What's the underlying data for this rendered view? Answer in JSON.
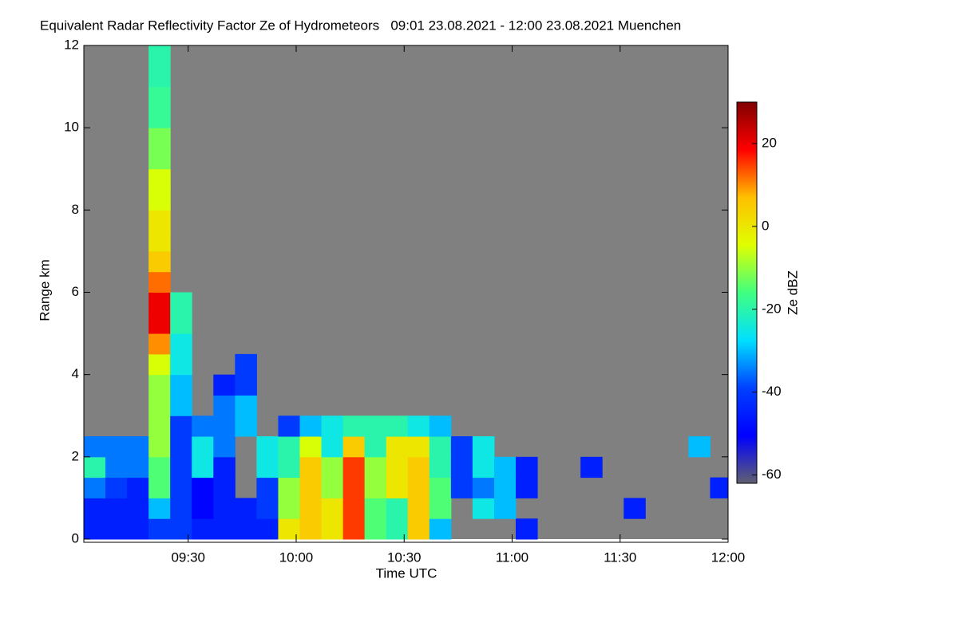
{
  "chart_data": {
    "type": "heatmap",
    "title": "Equivalent Radar Reflectivity Factor Ze of Hydrometeors   09:01 23.08.2021 - 12:00 23.08.2021 Muenchen",
    "xlabel": "Time UTC",
    "ylabel": "Range km",
    "colorbar_label": "Ze dBZ",
    "x": [
      541,
      547,
      553,
      559,
      565,
      571,
      577,
      583,
      589,
      595,
      601,
      607,
      613,
      619,
      625,
      631,
      637,
      643,
      649,
      655,
      661,
      667,
      673,
      679,
      685,
      691,
      697,
      703,
      709,
      715
    ],
    "y": [
      0,
      0.5,
      1,
      1.5,
      2,
      2.5,
      3,
      3.5,
      4,
      4.5,
      5,
      5.5,
      6,
      6.5,
      7,
      7.5,
      8,
      8.5,
      9,
      9.5,
      10,
      10.5,
      11,
      11.5
    ],
    "values": [
      [
        -45,
        -45,
        -45,
        -40,
        -40,
        -45,
        -45,
        -45,
        -45,
        0,
        5,
        0,
        15,
        -15,
        -20,
        5,
        -30,
        null,
        null,
        null,
        -45,
        null,
        null,
        null,
        null,
        null,
        null,
        null,
        null,
        null
      ],
      [
        -45,
        -45,
        -45,
        -30,
        -40,
        -50,
        -45,
        -45,
        -40,
        -10,
        5,
        0,
        15,
        -15,
        -20,
        5,
        -15,
        null,
        -25,
        -30,
        null,
        null,
        null,
        null,
        null,
        -45,
        null,
        null,
        null,
        null
      ],
      [
        -35,
        -40,
        -45,
        -15,
        -40,
        -50,
        -45,
        null,
        -40,
        -10,
        5,
        -10,
        15,
        -10,
        0,
        5,
        -15,
        -40,
        -35,
        -30,
        -45,
        null,
        null,
        null,
        null,
        null,
        null,
        null,
        null,
        -45
      ],
      [
        -20,
        -35,
        -35,
        -15,
        -40,
        -25,
        -45,
        null,
        -25,
        -20,
        5,
        -10,
        15,
        -10,
        0,
        5,
        -20,
        -40,
        -25,
        -30,
        -45,
        null,
        null,
        -45,
        null,
        null,
        null,
        null,
        null,
        null
      ],
      [
        -35,
        -35,
        -35,
        -10,
        -40,
        -25,
        -35,
        null,
        -25,
        -20,
        -5,
        -25,
        5,
        -20,
        0,
        0,
        -20,
        -40,
        -25,
        null,
        null,
        null,
        null,
        null,
        null,
        null,
        null,
        null,
        -30,
        null
      ],
      [
        null,
        null,
        null,
        -10,
        -40,
        -35,
        -35,
        -30,
        null,
        -40,
        -30,
        -25,
        -20,
        -20,
        -20,
        -25,
        -30,
        null,
        null,
        null,
        null,
        null,
        null,
        null,
        null,
        null,
        null,
        null,
        null,
        null
      ],
      [
        null,
        null,
        null,
        -10,
        -30,
        null,
        -35,
        -30,
        null,
        null,
        null,
        null,
        null,
        null,
        null,
        null,
        null,
        null,
        null,
        null,
        null,
        null,
        null,
        null,
        null,
        null,
        null,
        null,
        null,
        null
      ],
      [
        null,
        null,
        null,
        -10,
        -30,
        null,
        -45,
        -40,
        null,
        null,
        null,
        null,
        null,
        null,
        null,
        null,
        null,
        null,
        null,
        null,
        null,
        null,
        null,
        null,
        null,
        null,
        null,
        null,
        null,
        null
      ],
      [
        null,
        null,
        null,
        -5,
        -25,
        null,
        null,
        -40,
        null,
        null,
        null,
        null,
        null,
        null,
        null,
        null,
        null,
        null,
        null,
        null,
        null,
        null,
        null,
        null,
        null,
        null,
        null,
        null,
        null,
        null
      ],
      [
        null,
        null,
        null,
        10,
        -25,
        null,
        null,
        null,
        null,
        null,
        null,
        null,
        null,
        null,
        null,
        null,
        null,
        null,
        null,
        null,
        null,
        null,
        null,
        null,
        null,
        null,
        null,
        null,
        null,
        null
      ],
      [
        null,
        null,
        null,
        20,
        -20,
        null,
        null,
        null,
        null,
        null,
        null,
        null,
        null,
        null,
        null,
        null,
        null,
        null,
        null,
        null,
        null,
        null,
        null,
        null,
        null,
        null,
        null,
        null,
        null,
        null
      ],
      [
        null,
        null,
        null,
        20,
        -20,
        null,
        null,
        null,
        null,
        null,
        null,
        null,
        null,
        null,
        null,
        null,
        null,
        null,
        null,
        null,
        null,
        null,
        null,
        null,
        null,
        null,
        null,
        null,
        null,
        null
      ],
      [
        null,
        null,
        null,
        12,
        null,
        null,
        null,
        null,
        null,
        null,
        null,
        null,
        null,
        null,
        null,
        null,
        null,
        null,
        null,
        null,
        null,
        null,
        null,
        null,
        null,
        null,
        null,
        null,
        null,
        null
      ],
      [
        null,
        null,
        null,
        5,
        null,
        null,
        null,
        null,
        null,
        null,
        null,
        null,
        null,
        null,
        null,
        null,
        null,
        null,
        null,
        null,
        null,
        null,
        null,
        null,
        null,
        null,
        null,
        null,
        null,
        null
      ],
      [
        null,
        null,
        null,
        0,
        null,
        null,
        null,
        null,
        null,
        null,
        null,
        null,
        null,
        null,
        null,
        null,
        null,
        null,
        null,
        null,
        null,
        null,
        null,
        null,
        null,
        null,
        null,
        null,
        null,
        null
      ],
      [
        null,
        null,
        null,
        0,
        null,
        null,
        null,
        null,
        null,
        null,
        null,
        null,
        null,
        null,
        null,
        null,
        null,
        null,
        null,
        null,
        null,
        null,
        null,
        null,
        null,
        null,
        null,
        null,
        null,
        null
      ],
      [
        null,
        null,
        null,
        -5,
        null,
        null,
        null,
        null,
        null,
        null,
        null,
        null,
        null,
        null,
        null,
        null,
        null,
        null,
        null,
        null,
        null,
        null,
        null,
        null,
        null,
        null,
        null,
        null,
        null,
        null
      ],
      [
        null,
        null,
        null,
        -5,
        null,
        null,
        null,
        null,
        null,
        null,
        null,
        null,
        null,
        null,
        null,
        null,
        null,
        null,
        null,
        null,
        null,
        null,
        null,
        null,
        null,
        null,
        null,
        null,
        null,
        null
      ],
      [
        null,
        null,
        null,
        -12,
        null,
        null,
        null,
        null,
        null,
        null,
        null,
        null,
        null,
        null,
        null,
        null,
        null,
        null,
        null,
        null,
        null,
        null,
        null,
        null,
        null,
        null,
        null,
        null,
        null,
        null
      ],
      [
        null,
        null,
        null,
        -12,
        null,
        null,
        null,
        null,
        null,
        null,
        null,
        null,
        null,
        null,
        null,
        null,
        null,
        null,
        null,
        null,
        null,
        null,
        null,
        null,
        null,
        null,
        null,
        null,
        null,
        null
      ],
      [
        null,
        null,
        null,
        -18,
        null,
        null,
        null,
        null,
        null,
        null,
        null,
        null,
        null,
        null,
        null,
        null,
        null,
        null,
        null,
        null,
        null,
        null,
        null,
        null,
        null,
        null,
        null,
        null,
        null,
        null
      ],
      [
        null,
        null,
        null,
        -18,
        null,
        null,
        null,
        null,
        null,
        null,
        null,
        null,
        null,
        null,
        null,
        null,
        null,
        null,
        null,
        null,
        null,
        null,
        null,
        null,
        null,
        null,
        null,
        null,
        null,
        null
      ],
      [
        null,
        null,
        null,
        -20,
        null,
        null,
        null,
        null,
        null,
        null,
        null,
        null,
        null,
        null,
        null,
        null,
        null,
        null,
        null,
        null,
        null,
        null,
        null,
        null,
        null,
        null,
        null,
        null,
        null,
        null
      ],
      [
        null,
        null,
        null,
        -20,
        null,
        null,
        null,
        null,
        null,
        null,
        null,
        null,
        null,
        null,
        null,
        null,
        null,
        null,
        null,
        null,
        null,
        null,
        null,
        null,
        null,
        null,
        null,
        null,
        null,
        null
      ]
    ],
    "xlim": [
      541,
      720
    ],
    "xticks": [
      {
        "value": 570,
        "label": "09:30"
      },
      {
        "value": 600,
        "label": "10:00"
      },
      {
        "value": 630,
        "label": "10:30"
      },
      {
        "value": 660,
        "label": "11:00"
      },
      {
        "value": 690,
        "label": "11:30"
      },
      {
        "value": 720,
        "label": "12:00"
      }
    ],
    "ylim": [
      0,
      12
    ],
    "yticks": [
      0,
      2,
      4,
      6,
      8,
      10,
      12
    ],
    "zlim": [
      -62,
      30
    ],
    "zticks": [
      -60,
      -40,
      -20,
      0,
      20
    ],
    "colormap": [
      "#606070",
      "#0000ff",
      "#0040ff",
      "#00e0ff",
      "#40ff80",
      "#e0ff00",
      "#ffc000",
      "#ff0000",
      "#800000"
    ],
    "background": "#808080"
  }
}
